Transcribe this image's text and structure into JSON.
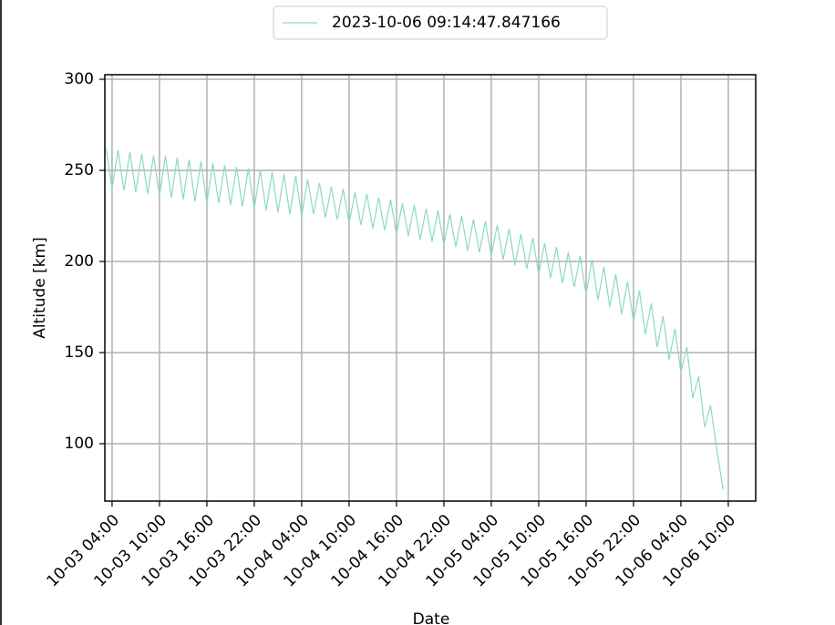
{
  "chart_data": {
    "type": "line",
    "x_label": "Date",
    "y_label": "Altitude [km]",
    "x": [
      "10-03 03:15",
      "10-03 04:00",
      "10-03 04:45",
      "10-03 05:30",
      "10-03 06:15",
      "10-03 07:00",
      "10-03 07:45",
      "10-03 08:30",
      "10-03 09:15",
      "10-03 10:00",
      "10-03 10:45",
      "10-03 11:30",
      "10-03 12:15",
      "10-03 13:00",
      "10-03 13:45",
      "10-03 14:30",
      "10-03 15:15",
      "10-03 16:00",
      "10-03 16:45",
      "10-03 17:30",
      "10-03 18:15",
      "10-03 19:00",
      "10-03 19:45",
      "10-03 20:30",
      "10-03 21:15",
      "10-03 22:00",
      "10-03 22:45",
      "10-03 23:30",
      "10-04 00:15",
      "10-04 01:00",
      "10-04 01:45",
      "10-04 02:30",
      "10-04 03:15",
      "10-04 04:00",
      "10-04 04:45",
      "10-04 05:30",
      "10-04 06:15",
      "10-04 07:00",
      "10-04 07:45",
      "10-04 08:30",
      "10-04 09:15",
      "10-04 10:00",
      "10-04 10:45",
      "10-04 11:30",
      "10-04 12:15",
      "10-04 13:00",
      "10-04 13:45",
      "10-04 14:30",
      "10-04 15:15",
      "10-04 16:00",
      "10-04 16:45",
      "10-04 17:30",
      "10-04 18:15",
      "10-04 19:00",
      "10-04 19:45",
      "10-04 20:30",
      "10-04 21:15",
      "10-04 22:00",
      "10-04 22:45",
      "10-04 23:30",
      "10-05 00:15",
      "10-05 01:00",
      "10-05 01:45",
      "10-05 02:30",
      "10-05 03:15",
      "10-05 04:00",
      "10-05 04:45",
      "10-05 05:30",
      "10-05 06:15",
      "10-05 07:00",
      "10-05 07:45",
      "10-05 08:30",
      "10-05 09:15",
      "10-05 10:00",
      "10-05 10:45",
      "10-05 11:30",
      "10-05 12:15",
      "10-05 13:00",
      "10-05 13:45",
      "10-05 14:30",
      "10-05 15:15",
      "10-05 16:00",
      "10-05 16:45",
      "10-05 17:30",
      "10-05 18:15",
      "10-05 19:00",
      "10-05 19:45",
      "10-05 20:30",
      "10-05 21:15",
      "10-05 22:00",
      "10-05 22:45",
      "10-05 23:30",
      "10-06 00:15",
      "10-06 01:00",
      "10-06 01:45",
      "10-06 02:30",
      "10-06 03:15",
      "10-06 04:00",
      "10-06 04:45",
      "10-06 05:30",
      "10-06 06:15",
      "10-06 07:00",
      "10-06 07:45",
      "10-06 08:30",
      "10-06 09:20"
    ],
    "series": [
      {
        "name": "2023-10-06 09:14:47.847166",
        "color": "#8dd8c8",
        "values": [
          262,
          240,
          261,
          239,
          260,
          238,
          259,
          237,
          258,
          236,
          258,
          235,
          257,
          234,
          256,
          233,
          255,
          232,
          254,
          232,
          253,
          231,
          252,
          230,
          251,
          229,
          250,
          228,
          249,
          227,
          248,
          226,
          247,
          225,
          245,
          226,
          243,
          224,
          241,
          223,
          240,
          221,
          238,
          220,
          237,
          218,
          235,
          217,
          234,
          215,
          232,
          214,
          231,
          212,
          229,
          211,
          228,
          209,
          226,
          208,
          225,
          206,
          223,
          205,
          222,
          203,
          220,
          201,
          218,
          198,
          215,
          196,
          213,
          193,
          210,
          191,
          208,
          188,
          205,
          186,
          203,
          182,
          201,
          179,
          197,
          175,
          193,
          171,
          189,
          167,
          184,
          160,
          177,
          153,
          170,
          146,
          163,
          139,
          153,
          125,
          137,
          109,
          121,
          98,
          75
        ]
      }
    ],
    "xlim": [
      "10-03 03:05",
      "10-06 13:28"
    ],
    "xticks": [
      "10-03 04:00",
      "10-03 10:00",
      "10-03 16:00",
      "10-03 22:00",
      "10-04 04:00",
      "10-04 10:00",
      "10-04 16:00",
      "10-04 22:00",
      "10-05 04:00",
      "10-05 10:00",
      "10-05 16:00",
      "10-05 22:00",
      "10-06 04:00",
      "10-06 10:00"
    ],
    "ylim": [
      68.5,
      302.5
    ],
    "yticks": [
      100,
      150,
      200,
      250,
      300
    ],
    "grid": true,
    "legend": "upper center"
  }
}
